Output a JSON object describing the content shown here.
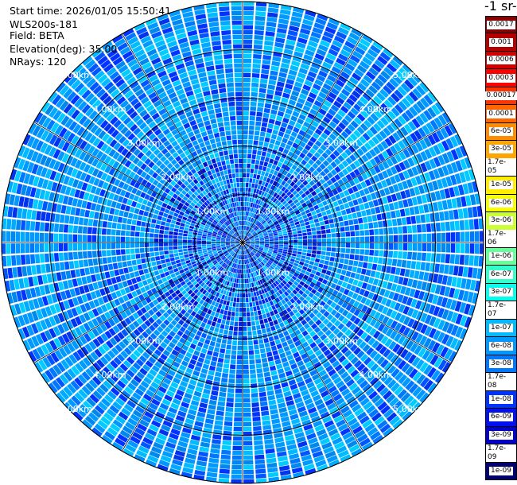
{
  "info": {
    "start_time": "Start time: 2026/01/05 15:50:41",
    "instrument": "WLS200s-181",
    "field": "Field: BETA",
    "elevation": "Elevation(deg): 35.00",
    "nrays": "NRays: 120"
  },
  "unit_label": "-1 sr-",
  "chart_data": {
    "type": "heatmap",
    "subtype": "polar-ppi",
    "title": "",
    "field": "BETA",
    "elevation_deg": 35.0,
    "n_rays": 120,
    "max_range_km": 5.0,
    "range_rings_km": [
      1,
      2,
      3,
      4,
      5
    ],
    "range_labels": [
      "1.00km",
      "2.00km",
      "3.00km",
      "4.00km",
      "5.00km"
    ],
    "typical_value": "6e-08 to 1e-07",
    "colorbar": {
      "scale": "log",
      "min": 1e-09,
      "max": 0.0017,
      "ticks": [
        "0.0017",
        "0.001",
        "0.0006",
        "0.0003",
        "0.00017",
        "0.0001",
        "6e-05",
        "3e-05",
        "1.7e-05",
        "1e-05",
        "6e-06",
        "3e-06",
        "1.7e-06",
        "1e-06",
        "6e-07",
        "3e-07",
        "1.7e-07",
        "1e-07",
        "6e-08",
        "3e-08",
        "1.7e-08",
        "1e-08",
        "6e-09",
        "3e-09",
        "1.7e-09",
        "1e-09"
      ],
      "colors": [
        "#8b0000",
        "#b30000",
        "#d40000",
        "#ff0000",
        "#ff3300",
        "#ff6600",
        "#ff8c00",
        "#ffa500",
        "#ffc800",
        "#ffee00",
        "#f5ff00",
        "#ccff33",
        "#99ff66",
        "#66ff99",
        "#33ffcc",
        "#00ffee",
        "#00ddff",
        "#00bbff",
        "#0099ff",
        "#0077ff",
        "#0055ff",
        "#0033ff",
        "#0011ee",
        "#0000cc",
        "#0000a0",
        "#000070"
      ]
    }
  }
}
